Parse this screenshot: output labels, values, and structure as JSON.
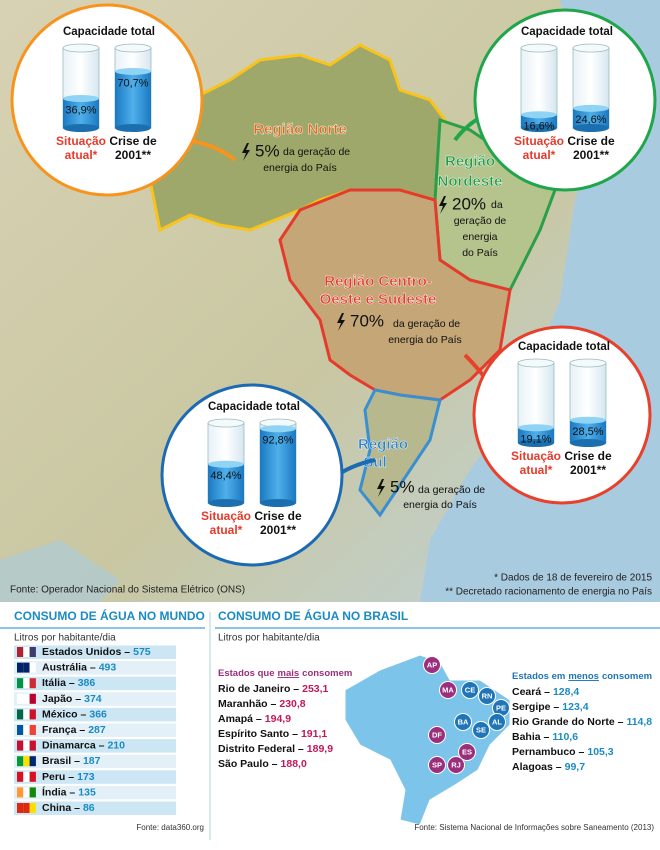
{
  "map": {
    "regions": [
      {
        "name": [
          "Região Norte"
        ],
        "share": "5%",
        "share_text": [
          "da geração de",
          "energia do País"
        ],
        "capacity": {
          "title": "Capacidade total",
          "current": {
            "value": 36.9,
            "label": "36,9%"
          },
          "crisis": {
            "value": 70.7,
            "label": "70,7%"
          },
          "current_label": [
            "Situação",
            "atual*"
          ],
          "crisis_label": [
            "Crise de",
            "2001**"
          ]
        }
      },
      {
        "name": [
          "Região",
          "Nordeste"
        ],
        "share": "20%",
        "share_text": [
          "da",
          "geração de",
          "energia",
          "do País"
        ],
        "capacity": {
          "title": "Capacidade total",
          "current": {
            "value": 16.6,
            "label": "16,6%"
          },
          "crisis": {
            "value": 24.6,
            "label": "24,6%"
          },
          "current_label": [
            "Situação",
            "atual*"
          ],
          "crisis_label": [
            "Crise de",
            "2001**"
          ]
        }
      },
      {
        "name": [
          "Região Centro-",
          "Oeste e Sudeste"
        ],
        "share": "70%",
        "share_text": [
          "da geração de",
          "energia do País"
        ],
        "capacity": {
          "title": "Capacidade total",
          "current": {
            "value": 19.1,
            "label": "19,1%"
          },
          "crisis": {
            "value": 28.5,
            "label": "28,5%"
          },
          "current_label": [
            "Situação",
            "atual*"
          ],
          "crisis_label": [
            "Crise de",
            "2001**"
          ]
        }
      },
      {
        "name": [
          "Região",
          "Sul"
        ],
        "share": "5%",
        "share_text": [
          "da geração de",
          "energia do País"
        ],
        "capacity": {
          "title": "Capacidade total",
          "current": {
            "value": 48.4,
            "label": "48,4%"
          },
          "crisis": {
            "value": 92.8,
            "label": "92,8%"
          },
          "current_label": [
            "Situação",
            "atual*"
          ],
          "crisis_label": [
            "Crise de",
            "2001**"
          ]
        }
      }
    ],
    "source": "Fonte: Operador Nacional do Sistema Elétrico (ONS)",
    "notes": [
      "* Dados de 18 de fevereiro de 2015",
      "** Decretado racionamento de energia no País"
    ]
  },
  "world": {
    "title": "CONSUMO DE ÁGUA NO MUNDO",
    "subtitle": "Litros por habitante/dia",
    "rows": [
      {
        "country": "Estados Unidos –",
        "value": "575"
      },
      {
        "country": "Austrália –",
        "value": "493"
      },
      {
        "country": "Itália –",
        "value": "386"
      },
      {
        "country": "Japão –",
        "value": "374"
      },
      {
        "country": "México –",
        "value": "366"
      },
      {
        "country": "França –",
        "value": "287"
      },
      {
        "country": "Dinamarca –",
        "value": "210"
      },
      {
        "country": "Brasil –",
        "value": "187"
      },
      {
        "country": "Peru –",
        "value": "173"
      },
      {
        "country": "Índia –",
        "value": "135"
      },
      {
        "country": "China –",
        "value": "86"
      }
    ],
    "source": "Fonte: data360.org"
  },
  "brazil": {
    "title": "CONSUMO DE ÁGUA NO BRASIL",
    "subtitle": "Litros por habitante/dia",
    "most": {
      "heading": [
        "Estados que",
        "mais",
        "consomem"
      ],
      "rows": [
        {
          "state": "Rio de Janeiro –",
          "value": "253,1",
          "code": "RJ"
        },
        {
          "state": "Maranhão –",
          "value": "230,8",
          "code": "MA"
        },
        {
          "state": "Amapá –",
          "value": "194,9",
          "code": "AP"
        },
        {
          "state": "Espírito Santo –",
          "value": "191,1",
          "code": "ES"
        },
        {
          "state": "Distrito Federal –",
          "value": "189,9",
          "code": "DF"
        },
        {
          "state": "São Paulo –",
          "value": "188,0",
          "code": "SP"
        }
      ]
    },
    "least": {
      "heading": [
        "Estados em",
        "menos",
        "consomem"
      ],
      "rows": [
        {
          "state": "Ceará –",
          "value": "128,4",
          "code": "CE"
        },
        {
          "state": "Sergipe –",
          "value": "123,4",
          "code": "SE"
        },
        {
          "state": "Rio Grande do Norte –",
          "value": "114,8",
          "code": "RN"
        },
        {
          "state": "Bahia –",
          "value": "110,6",
          "code": "BA"
        },
        {
          "state": "Pernambuco –",
          "value": "105,3",
          "code": "PE"
        },
        {
          "state": "Alagoas –",
          "value": "99,7",
          "code": "AL"
        }
      ]
    },
    "source": "Fonte: Sistema Nacional de Informações sobre Saneamento (2013)"
  }
}
